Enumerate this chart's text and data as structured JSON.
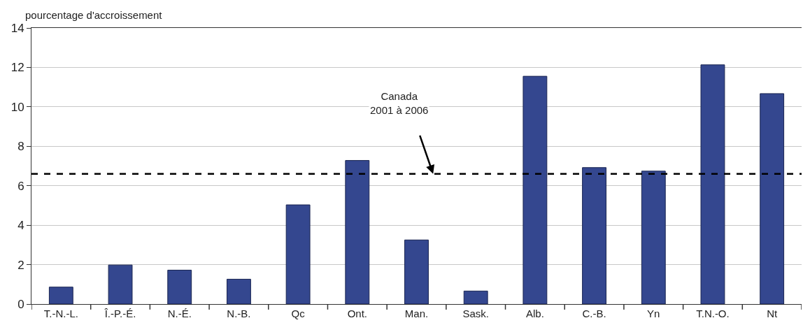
{
  "chart_data": {
    "type": "bar",
    "ylabel": "pourcentage d'accroissement",
    "categories": [
      "T.-N.-L.",
      "Î.-P.-É.",
      "N.-É.",
      "N.-B.",
      "Qc",
      "Ont.",
      "Man.",
      "Sask.",
      "Alb.",
      "C.-B.",
      "Yn",
      "T.N.-O.",
      "Nt"
    ],
    "values": [
      0.86,
      1.98,
      1.72,
      1.26,
      5.03,
      7.28,
      3.25,
      0.66,
      11.55,
      6.92,
      6.74,
      12.13,
      10.67
    ],
    "color": "#34478f",
    "ylim": [
      0,
      14
    ],
    "yticks": [
      0,
      2,
      4,
      6,
      8,
      10,
      12,
      14
    ],
    "grid": "y",
    "ref_lines": [
      {
        "axis": "y",
        "value": 6.6,
        "label": "Canada\n2001 à 2006",
        "color": "#000000",
        "line_style": "dashed"
      }
    ]
  }
}
